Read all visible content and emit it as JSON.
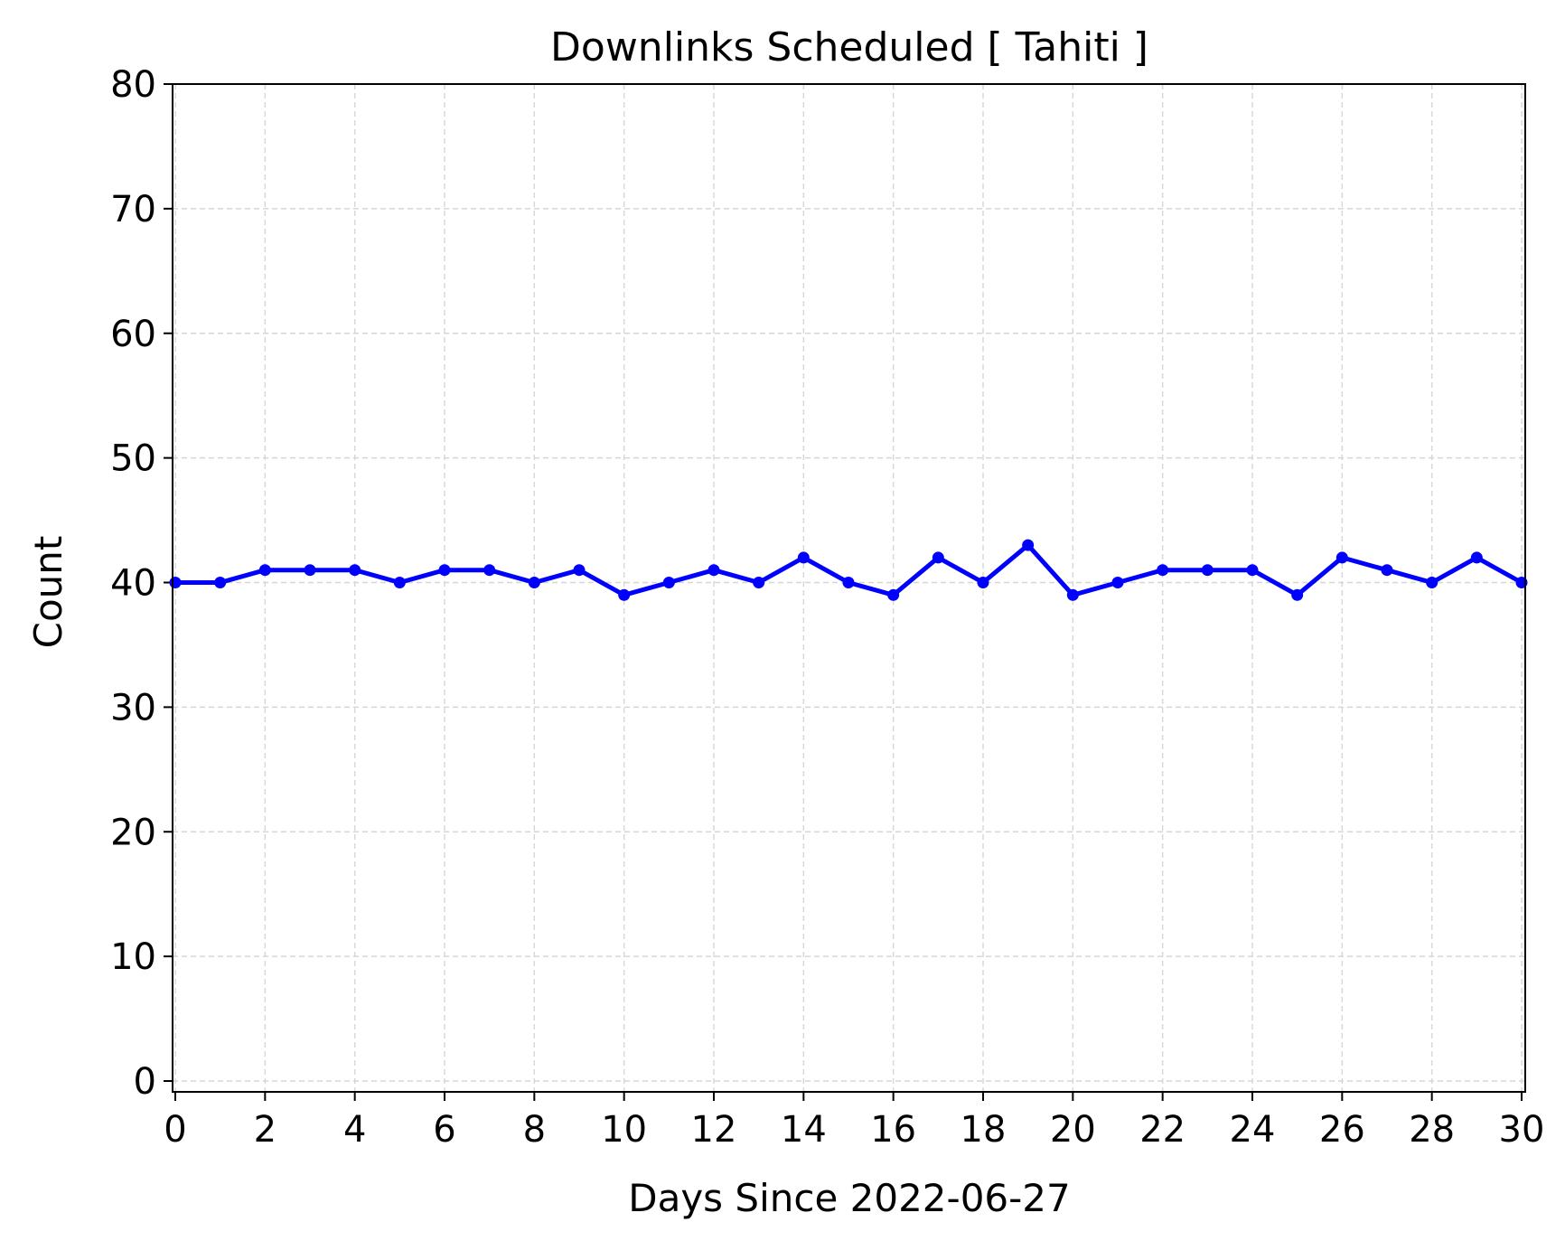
{
  "chart_data": {
    "type": "line",
    "title": "Downlinks Scheduled [ Tahiti ]",
    "xlabel": "Days Since 2022-06-27",
    "ylabel": "Count",
    "xlim": [
      0,
      30
    ],
    "ylim": [
      0,
      80
    ],
    "xticks": [
      0,
      2,
      4,
      6,
      8,
      10,
      12,
      14,
      16,
      18,
      20,
      22,
      24,
      26,
      28,
      30
    ],
    "yticks": [
      0,
      10,
      20,
      30,
      40,
      50,
      60,
      70,
      80
    ],
    "grid": true,
    "legend": "none",
    "series": [
      {
        "color": "#0000ff",
        "marker": "dot",
        "x": [
          0,
          1,
          2,
          3,
          4,
          5,
          6,
          7,
          8,
          9,
          10,
          11,
          12,
          13,
          14,
          15,
          16,
          17,
          18,
          19,
          20,
          21,
          22,
          23,
          24,
          25,
          26,
          27,
          28,
          29,
          30
        ],
        "y": [
          40,
          40,
          41,
          41,
          41,
          40,
          41,
          41,
          40,
          41,
          39,
          40,
          41,
          40,
          42,
          40,
          39,
          42,
          40,
          43,
          39,
          40,
          41,
          41,
          41,
          39,
          42,
          41,
          40,
          42,
          40
        ]
      }
    ]
  }
}
